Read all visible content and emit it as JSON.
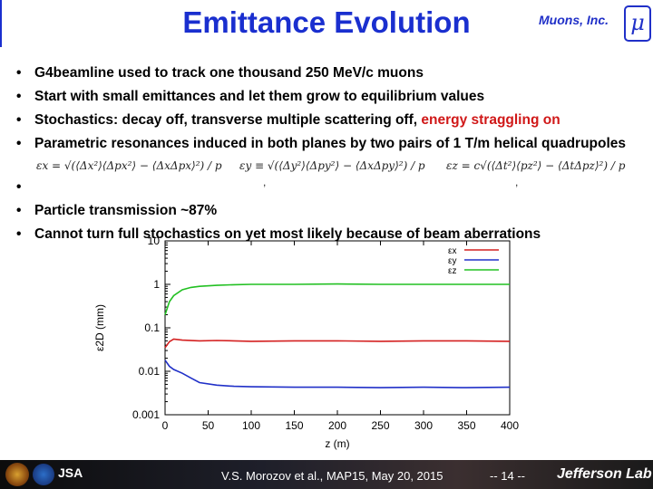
{
  "slide": {
    "title": "Emittance Evolution",
    "brand": "Muons, Inc.",
    "brand_symbol": "μ"
  },
  "bullets": [
    {
      "marker": "•",
      "text": "G4beamline used to track one thousand 250 MeV/c muons"
    },
    {
      "marker": "•",
      "text": "Start with small emittances and let them grow to equilibrium values"
    },
    {
      "marker": "•",
      "text_prefix": "Stochastics: decay off, transverse multiple scattering off, ",
      "text_highlight": "energy straggling on"
    },
    {
      "marker": "•",
      "text": "Parametric resonances induced in both planes by two pairs of 1 T/m helical quadrupoles"
    },
    {
      "marker": "•",
      "text": ""
    },
    {
      "marker": "•",
      "text": "Particle transmission ~87%"
    },
    {
      "marker": "•",
      "text": "Cannot turn full stochastics on yet most likely because of beam aberrations"
    }
  ],
  "formulas": {
    "x": "εx = √(⟨Δx²⟩⟨Δpx²⟩ − ⟨ΔxΔpx⟩²) / p",
    "y": "εy ≡ √(⟨Δy²⟩⟨Δpy²⟩ − ⟨ΔxΔpy⟩²) / p",
    "z": "εz = c√(⟨Δt²⟩⟨pz²⟩ − ⟨ΔtΔpz⟩²) / p",
    "comma": ","
  },
  "chart_data": {
    "type": "line",
    "title": "",
    "xlabel": "z (m)",
    "ylabel": "ε2D (mm)",
    "xlim": [
      0,
      400
    ],
    "ylim_log": [
      0.001,
      10
    ],
    "yscale": "log",
    "x_ticks": [
      "0",
      "50",
      "100",
      "150",
      "200",
      "250",
      "300",
      "350",
      "400"
    ],
    "y_ticks": [
      "10",
      "1",
      "0.1",
      "0.01",
      "0.001"
    ],
    "legend": [
      "εx",
      "εy",
      "εz"
    ],
    "legend_position": "top-right",
    "series": [
      {
        "name": "εx",
        "color": "#d42020",
        "x": [
          0,
          5,
          10,
          20,
          40,
          60,
          80,
          100,
          150,
          200,
          250,
          300,
          350,
          400
        ],
        "y": [
          0.035,
          0.048,
          0.055,
          0.052,
          0.05,
          0.051,
          0.05,
          0.049,
          0.05,
          0.05,
          0.049,
          0.05,
          0.05,
          0.049
        ]
      },
      {
        "name": "εy",
        "color": "#2030c8",
        "x": [
          0,
          5,
          10,
          20,
          30,
          40,
          60,
          80,
          100,
          150,
          200,
          250,
          300,
          350,
          400
        ],
        "y": [
          0.018,
          0.013,
          0.011,
          0.009,
          0.007,
          0.0055,
          0.0048,
          0.0045,
          0.0044,
          0.0043,
          0.0043,
          0.0042,
          0.0043,
          0.0042,
          0.0043
        ]
      },
      {
        "name": "εz",
        "color": "#22c022",
        "x": [
          0,
          5,
          10,
          20,
          30,
          40,
          60,
          80,
          100,
          150,
          200,
          250,
          300,
          350,
          400
        ],
        "y": [
          0.2,
          0.4,
          0.55,
          0.75,
          0.85,
          0.9,
          0.95,
          0.98,
          1.0,
          1.0,
          1.02,
          1.0,
          1.0,
          1.0,
          1.0
        ]
      }
    ]
  },
  "footer": {
    "citation": "V.S. Morozov et al., MAP15, May 20, 2015",
    "page": "-- 14 --",
    "lab": "Jefferson Lab",
    "partner": "JSA"
  },
  "colors": {
    "title": "#1a2fcf",
    "highlight": "#d01818"
  }
}
